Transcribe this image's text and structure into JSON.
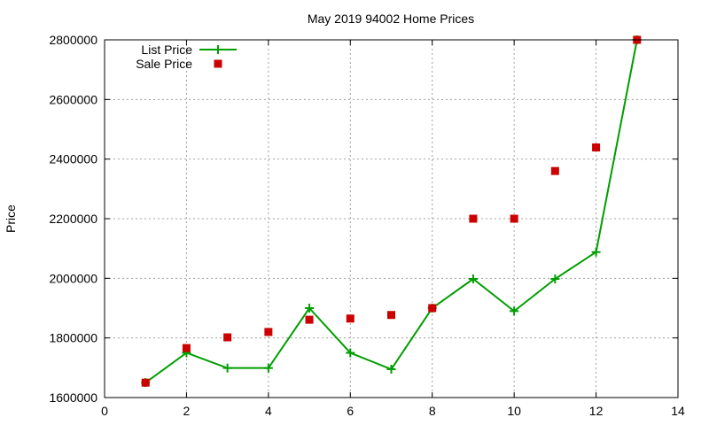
{
  "chart_data": {
    "type": "line",
    "title": "May 2019 94002 Home Prices",
    "xlabel": "",
    "ylabel": "Price",
    "xlim": [
      0,
      14
    ],
    "ylim": [
      1600000,
      2800000
    ],
    "xticks": [
      0,
      2,
      4,
      6,
      8,
      10,
      12,
      14
    ],
    "yticks": [
      1600000,
      1800000,
      2000000,
      2200000,
      2400000,
      2600000,
      2800000
    ],
    "grid": true,
    "legend_position": "top-left",
    "x": [
      1,
      2,
      3,
      4,
      5,
      6,
      7,
      8,
      9,
      10,
      11,
      12,
      13
    ],
    "series": [
      {
        "name": "List Price",
        "style": "linespoints",
        "marker": "plus",
        "color": "#009e00",
        "values": [
          1650000,
          1750000,
          1699000,
          1699000,
          1900000,
          1750000,
          1695000,
          1900000,
          1998000,
          1890000,
          1998000,
          2088000,
          2800000
        ]
      },
      {
        "name": "Sale Price",
        "style": "points",
        "marker": "square",
        "color": "#cc0000",
        "values": [
          1650000,
          1766000,
          1802000,
          1820000,
          1861000,
          1865000,
          1877000,
          1900000,
          2200000,
          2200000,
          2360000,
          2439000,
          2800000
        ]
      }
    ]
  }
}
